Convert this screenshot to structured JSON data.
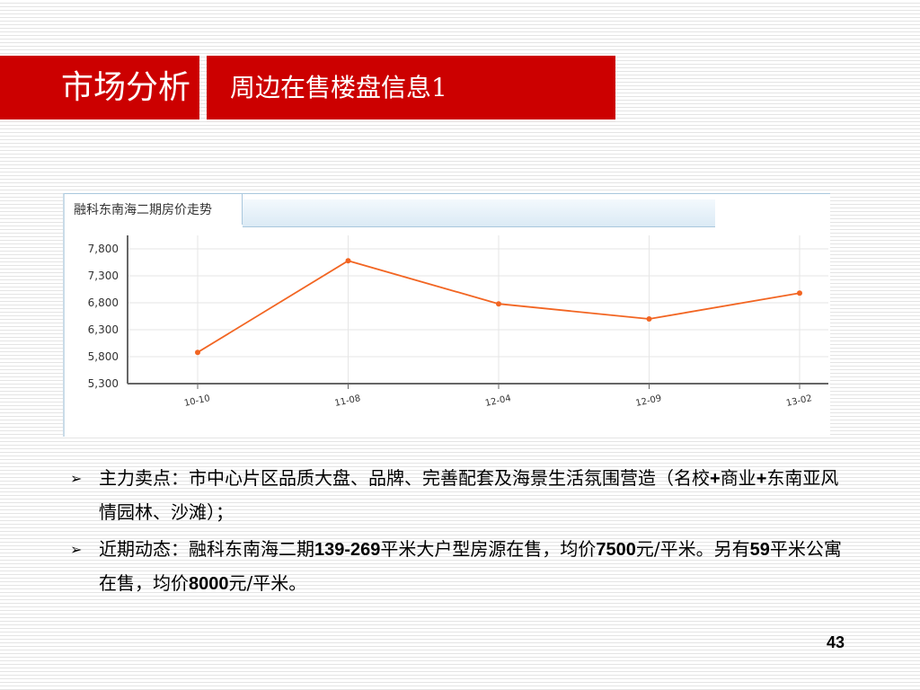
{
  "header": {
    "section": "市场分析",
    "title": "周边在售楼盘信息1"
  },
  "colors": {
    "title_bg": "#cc0000",
    "series_line": "#f26522"
  },
  "chart_data": {
    "type": "line",
    "title": "融科东南海二期房价走势",
    "categories": [
      "10-10",
      "11-08",
      "12-04",
      "12-09",
      "13-02"
    ],
    "values": [
      5880,
      7580,
      6780,
      6500,
      6980
    ],
    "ylim": [
      5300,
      7800
    ],
    "yticks": [
      "7,800",
      "7,300",
      "6,800",
      "6,300",
      "5,800",
      "5,300"
    ],
    "ytick_values": [
      7800,
      7300,
      6800,
      6300,
      5800,
      5300
    ],
    "grid": true,
    "xlabel": "",
    "ylabel": ""
  },
  "bullets": [
    {
      "parts": [
        {
          "t": "主力卖点：市中心片区品质大盘、品牌、完善配套及海景生活氛围营造（名校"
        },
        {
          "t": "+",
          "b": true
        },
        {
          "t": "商业"
        },
        {
          "t": "+",
          "b": true
        },
        {
          "t": "东南亚风情园林、沙滩）；"
        }
      ]
    },
    {
      "parts": [
        {
          "t": "近期动态：融科东南海二期"
        },
        {
          "t": "139-269",
          "b": true
        },
        {
          "t": "平米大户型房源在售，均价"
        },
        {
          "t": "7500",
          "b": true
        },
        {
          "t": "元/平米。另有"
        },
        {
          "t": "59",
          "b": true
        },
        {
          "t": "平米公寓在售，均价"
        },
        {
          "t": "8000",
          "b": true
        },
        {
          "t": "元/平米。"
        }
      ]
    }
  ],
  "bullet_marker": "➢",
  "page_number": "43"
}
